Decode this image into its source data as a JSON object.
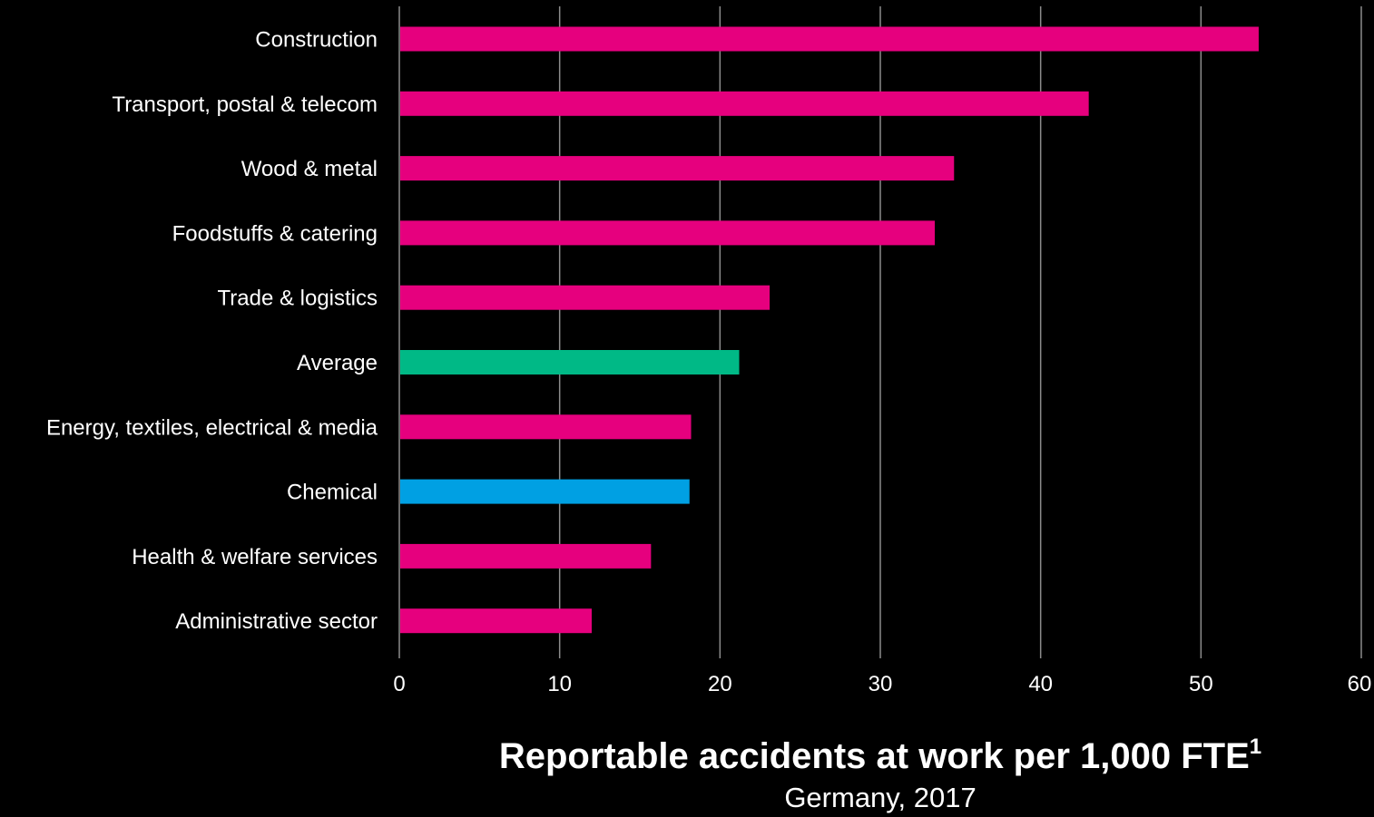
{
  "colors": {
    "background": "#000000",
    "sector_bar": "#e6007e",
    "average_bar": "#00b986",
    "chemical_bar": "#00a0e3",
    "grid": "#8c8c8c",
    "axis": "#8c8c8c",
    "text": "#ffffff"
  },
  "chart_data": {
    "type": "bar",
    "orientation": "horizontal",
    "title": "Reportable accidents at work per 1,000 FTE",
    "title_footnote": "1",
    "subtitle": "Germany, 2017",
    "xlabel": "",
    "ylabel": "",
    "xlim": [
      0,
      60
    ],
    "x_ticks": [
      "0",
      "10",
      "20",
      "30",
      "40",
      "50",
      "60"
    ],
    "grid": true,
    "legend": "none",
    "categories": [
      "Construction",
      "Transport, postal & telecom",
      "Wood & metal",
      "Foodstuffs & catering",
      "Trade & logistics",
      "Average",
      "Energy, textiles, electrical & media",
      "Chemical",
      "Health & welfare services",
      "Administrative sector"
    ],
    "values": [
      53.6,
      43.0,
      34.6,
      33.4,
      23.1,
      21.2,
      18.2,
      18.1,
      15.7,
      12.0
    ],
    "bar_colors": [
      "#e6007e",
      "#e6007e",
      "#e6007e",
      "#e6007e",
      "#e6007e",
      "#00b986",
      "#e6007e",
      "#00a0e3",
      "#e6007e",
      "#e6007e"
    ]
  }
}
